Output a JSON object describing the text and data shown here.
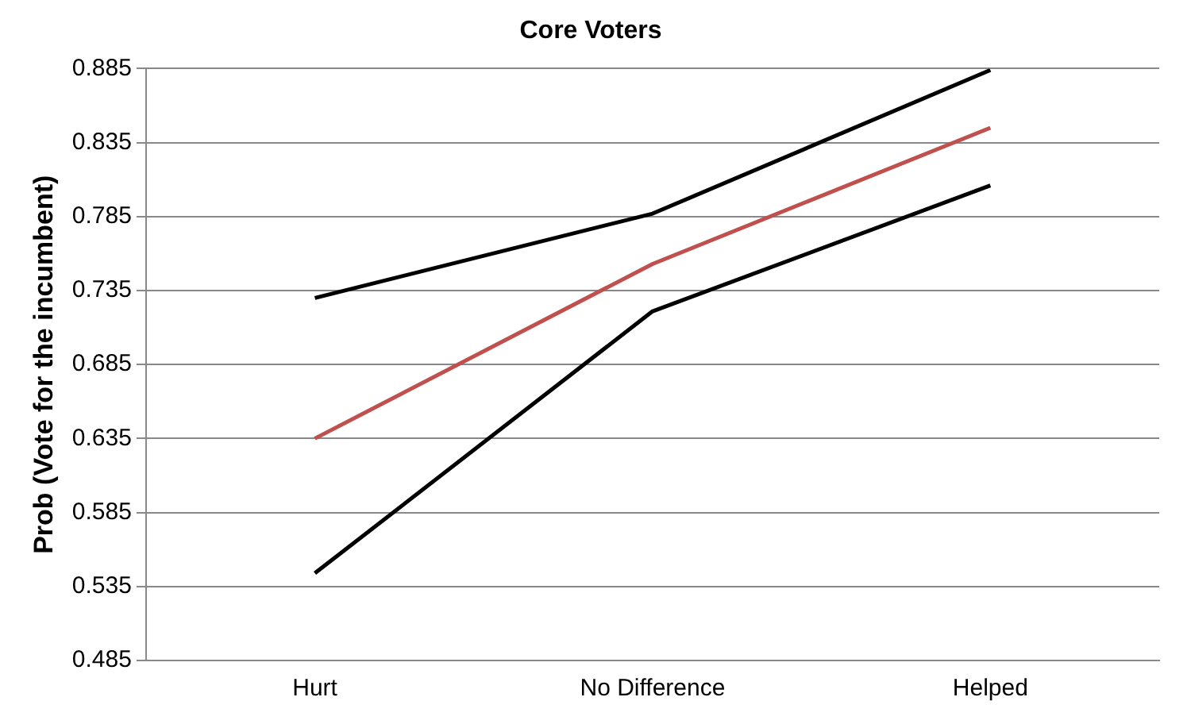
{
  "chart_data": {
    "type": "line",
    "title": "Core Voters",
    "ylabel": "Prob (Vote for the incumbent)",
    "categories": [
      "Hurt",
      "No Difference",
      "Helped"
    ],
    "series": [
      {
        "color": "#000000",
        "values": [
          0.73,
          0.787,
          0.884
        ]
      },
      {
        "color": "#c0504d",
        "values": [
          0.635,
          0.753,
          0.845
        ]
      },
      {
        "color": "#000000",
        "values": [
          0.544,
          0.721,
          0.806
        ]
      }
    ],
    "ylim": [
      0.485,
      0.885
    ],
    "yticks": [
      0.485,
      0.535,
      0.585,
      0.635,
      0.685,
      0.735,
      0.785,
      0.835,
      0.885
    ],
    "grid": "y",
    "legend": false,
    "marker": "none",
    "line_style": "solid"
  }
}
